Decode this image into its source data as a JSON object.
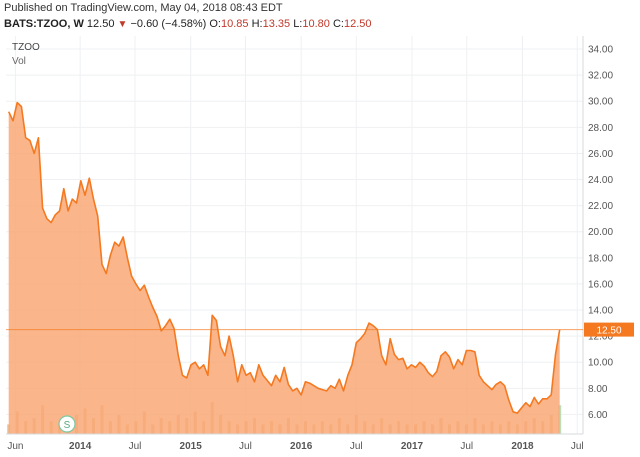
{
  "header": {
    "published": "Published on TradingView.com, May 04, 2018 08:43 EDT",
    "symbol": "BATS:TZOO, W",
    "last": "12.50",
    "change_arrow": "▼",
    "change": "−0.60 (−4.58%)",
    "o_label": "O:",
    "o_value": "10.85",
    "h_label": "H:",
    "h_value": "13.35",
    "l_label": "L:",
    "l_value": "10.80",
    "c_label": "C:",
    "c_value": "12.50"
  },
  "legend": {
    "ticker": "TZOO",
    "volume": "Vol"
  },
  "colors": {
    "line": "#f47920",
    "fill": "#f9a875",
    "price_tag": "#f47920",
    "volume": "#e9b88f",
    "volume_up": "#b8d8b0"
  },
  "chart_data": {
    "type": "area",
    "symbol": "TZOO",
    "interval": "W",
    "ylim": [
      4.5,
      35
    ],
    "y_ticks": [
      6,
      8,
      10,
      12,
      14,
      16,
      18,
      20,
      22,
      24,
      26,
      28,
      30,
      32,
      34
    ],
    "x_ticks": [
      "Jun",
      "2014",
      "Jul",
      "2015",
      "Jul",
      "2016",
      "Jul",
      "2017",
      "Jul",
      "2018",
      "Jul"
    ],
    "x_tick_dates": [
      "2013-06",
      "2014-01",
      "2014-07",
      "2015-01",
      "2015-07",
      "2016-01",
      "2016-07",
      "2017-01",
      "2017-07",
      "2018-01",
      "2018-07"
    ],
    "last_price_label": "12.50",
    "last_price": 12.5,
    "grid": true,
    "series": [
      {
        "name": "TZOO",
        "x": [
          "2013-05-10",
          "2013-05-24",
          "2013-06-07",
          "2013-06-21",
          "2013-07-05",
          "2013-07-19",
          "2013-08-02",
          "2013-08-16",
          "2013-08-30",
          "2013-09-13",
          "2013-09-27",
          "2013-10-11",
          "2013-10-25",
          "2013-11-08",
          "2013-11-22",
          "2013-12-06",
          "2013-12-20",
          "2014-01-03",
          "2014-01-17",
          "2014-01-31",
          "2014-02-14",
          "2014-02-28",
          "2014-03-14",
          "2014-03-28",
          "2014-04-11",
          "2014-04-25",
          "2014-05-09",
          "2014-05-23",
          "2014-06-06",
          "2014-06-20",
          "2014-07-04",
          "2014-07-18",
          "2014-08-01",
          "2014-08-15",
          "2014-08-29",
          "2014-09-12",
          "2014-09-26",
          "2014-10-10",
          "2014-10-24",
          "2014-11-07",
          "2014-11-21",
          "2014-12-05",
          "2014-12-19",
          "2015-01-02",
          "2015-01-16",
          "2015-01-30",
          "2015-02-13",
          "2015-02-27",
          "2015-03-13",
          "2015-03-27",
          "2015-04-10",
          "2015-04-24",
          "2015-05-08",
          "2015-05-22",
          "2015-06-05",
          "2015-06-19",
          "2015-07-03",
          "2015-07-17",
          "2015-07-31",
          "2015-08-14",
          "2015-08-28",
          "2015-09-11",
          "2015-09-25",
          "2015-10-09",
          "2015-10-23",
          "2015-11-06",
          "2015-11-20",
          "2015-12-04",
          "2015-12-18",
          "2016-01-01",
          "2016-01-15",
          "2016-01-29",
          "2016-02-12",
          "2016-02-26",
          "2016-03-11",
          "2016-03-25",
          "2016-04-08",
          "2016-04-22",
          "2016-05-06",
          "2016-05-20",
          "2016-06-03",
          "2016-06-17",
          "2016-07-01",
          "2016-07-15",
          "2016-07-29",
          "2016-08-12",
          "2016-08-26",
          "2016-09-09",
          "2016-09-23",
          "2016-10-07",
          "2016-10-21",
          "2016-11-04",
          "2016-11-18",
          "2016-12-02",
          "2016-12-16",
          "2016-12-30",
          "2017-01-13",
          "2017-01-27",
          "2017-02-10",
          "2017-02-24",
          "2017-03-10",
          "2017-03-24",
          "2017-04-07",
          "2017-04-21",
          "2017-05-05",
          "2017-05-19",
          "2017-06-02",
          "2017-06-16",
          "2017-06-30",
          "2017-07-14",
          "2017-07-28",
          "2017-08-11",
          "2017-08-25",
          "2017-09-08",
          "2017-09-22",
          "2017-10-06",
          "2017-10-20",
          "2017-11-03",
          "2017-11-17",
          "2017-12-01",
          "2017-12-15",
          "2017-12-29",
          "2018-01-12",
          "2018-01-26",
          "2018-02-09",
          "2018-02-23",
          "2018-03-09",
          "2018-03-23",
          "2018-04-06",
          "2018-04-20",
          "2018-05-04"
        ],
        "values": [
          29.2,
          28.5,
          29.9,
          29.6,
          27.2,
          27.0,
          26.0,
          27.2,
          21.8,
          21.0,
          20.7,
          21.3,
          21.6,
          23.3,
          21.6,
          22.5,
          22.2,
          23.9,
          22.8,
          24.1,
          22.5,
          21.2,
          17.5,
          16.8,
          18.2,
          19.2,
          18.9,
          19.6,
          18.0,
          16.6,
          16.0,
          15.5,
          15.9,
          15.0,
          14.2,
          13.5,
          12.4,
          12.8,
          13.3,
          12.6,
          10.5,
          9.0,
          8.8,
          9.8,
          10.0,
          9.5,
          9.8,
          9.0,
          13.6,
          13.2,
          11.2,
          10.5,
          12.0,
          10.5,
          8.5,
          9.8,
          9.0,
          9.2,
          8.5,
          9.8,
          9.0,
          8.6,
          8.2,
          9.0,
          8.5,
          9.6,
          8.3,
          7.8,
          8.0,
          7.5,
          8.5,
          8.4,
          8.2,
          8.0,
          7.9,
          7.8,
          8.2,
          8.0,
          8.7,
          7.8,
          9.0,
          9.8,
          11.5,
          11.8,
          12.2,
          13.0,
          12.8,
          12.5,
          10.5,
          9.8,
          11.8,
          10.6,
          10.2,
          10.3,
          9.5,
          9.8,
          9.6,
          10.0,
          9.7,
          9.2,
          8.9,
          9.3,
          10.5,
          10.8,
          10.4,
          9.5,
          10.2,
          9.8,
          10.9,
          10.9,
          10.8,
          9.0,
          8.5,
          8.2,
          7.9,
          8.3,
          8.5,
          8.2,
          7.1,
          6.2,
          6.1,
          6.5,
          6.9,
          6.6,
          7.3,
          6.8,
          7.2,
          7.2,
          7.5,
          10.6,
          12.5
        ]
      }
    ],
    "volume": {
      "name": "Vol",
      "x": [
        "2013-05-10",
        "2013-06-07",
        "2013-07-05",
        "2013-08-02",
        "2013-08-30",
        "2013-09-27",
        "2013-10-25",
        "2013-11-22",
        "2013-12-20",
        "2014-01-17",
        "2014-02-14",
        "2014-03-14",
        "2014-04-11",
        "2014-05-09",
        "2014-06-06",
        "2014-07-04",
        "2014-08-01",
        "2014-08-29",
        "2014-09-26",
        "2014-10-24",
        "2014-11-21",
        "2014-12-19",
        "2015-01-16",
        "2015-02-13",
        "2015-03-13",
        "2015-04-10",
        "2015-05-08",
        "2015-06-05",
        "2015-07-03",
        "2015-07-31",
        "2015-08-28",
        "2015-09-25",
        "2015-10-23",
        "2015-11-20",
        "2015-12-18",
        "2016-01-15",
        "2016-02-12",
        "2016-03-11",
        "2016-04-08",
        "2016-05-06",
        "2016-06-03",
        "2016-07-01",
        "2016-07-29",
        "2016-08-26",
        "2016-09-23",
        "2016-10-21",
        "2016-11-18",
        "2016-12-16",
        "2017-01-13",
        "2017-02-10",
        "2017-03-10",
        "2017-04-07",
        "2017-05-05",
        "2017-06-02",
        "2017-06-30",
        "2017-07-28",
        "2017-08-25",
        "2017-09-22",
        "2017-10-20",
        "2017-11-17",
        "2017-12-15",
        "2018-01-12",
        "2018-02-09",
        "2018-03-09",
        "2018-04-06",
        "2018-05-04"
      ],
      "values": [
        0.3,
        0.7,
        0.4,
        0.5,
        0.9,
        0.4,
        0.3,
        0.5,
        0.6,
        0.8,
        0.5,
        0.9,
        0.4,
        0.6,
        0.3,
        0.4,
        0.7,
        0.3,
        0.5,
        0.4,
        0.6,
        0.5,
        0.7,
        0.4,
        1.0,
        0.6,
        0.4,
        0.3,
        0.4,
        0.5,
        0.3,
        0.4,
        0.3,
        0.5,
        0.3,
        0.4,
        0.3,
        0.4,
        0.3,
        0.5,
        0.3,
        0.6,
        0.4,
        0.3,
        0.5,
        0.3,
        0.4,
        0.3,
        0.3,
        0.4,
        0.3,
        0.5,
        0.3,
        0.4,
        0.3,
        0.5,
        0.3,
        0.4,
        0.3,
        0.4,
        0.3,
        0.4,
        0.5,
        0.4,
        0.6,
        0.9
      ]
    },
    "event_marker": "S"
  }
}
